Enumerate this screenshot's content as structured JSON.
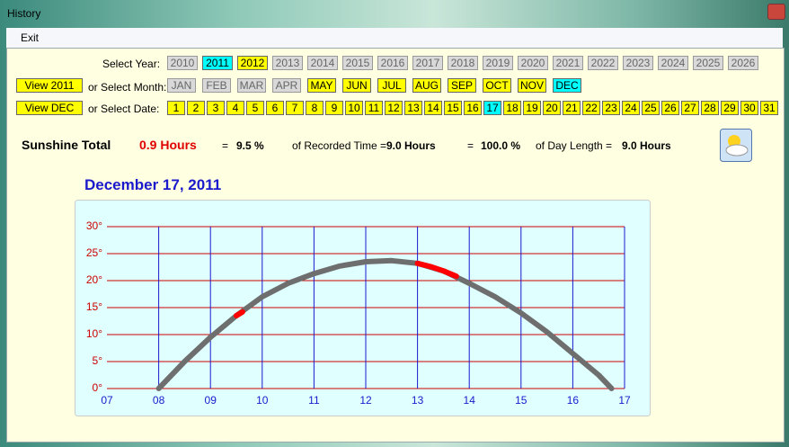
{
  "window": {
    "title": "History",
    "menu": [
      "Exit"
    ]
  },
  "selectors": {
    "year_label": "Select Year:",
    "month_label": "or Select Month:",
    "date_label": "or Select Date:",
    "view_year_button": "View 2011",
    "view_month_button": "View DEC",
    "years": [
      "2010",
      "2011",
      "2012",
      "2013",
      "2014",
      "2015",
      "2016",
      "2017",
      "2018",
      "2019",
      "2020",
      "2021",
      "2022",
      "2023",
      "2024",
      "2025",
      "2026"
    ],
    "year_states": [
      "disabled",
      "selected",
      "active",
      "disabled",
      "disabled",
      "disabled",
      "disabled",
      "disabled",
      "disabled",
      "disabled",
      "disabled",
      "disabled",
      "disabled",
      "disabled",
      "disabled",
      "disabled",
      "disabled"
    ],
    "months": [
      "JAN",
      "FEB",
      "MAR",
      "APR",
      "MAY",
      "JUN",
      "JUL",
      "AUG",
      "SEP",
      "OCT",
      "NOV",
      "DEC"
    ],
    "month_states": [
      "disabled",
      "disabled",
      "disabled",
      "disabled",
      "active",
      "active",
      "active",
      "active",
      "active",
      "active",
      "active",
      "selected"
    ],
    "dates": [
      "1",
      "2",
      "3",
      "4",
      "5",
      "6",
      "7",
      "8",
      "9",
      "10",
      "11",
      "12",
      "13",
      "14",
      "15",
      "16",
      "17",
      "18",
      "19",
      "20",
      "21",
      "22",
      "23",
      "24",
      "25",
      "26",
      "27",
      "28",
      "29",
      "30",
      "31"
    ],
    "date_states": [
      "active",
      "active",
      "active",
      "active",
      "active",
      "active",
      "active",
      "active",
      "active",
      "active",
      "active",
      "active",
      "active",
      "active",
      "active",
      "active",
      "selected",
      "active",
      "active",
      "active",
      "active",
      "active",
      "active",
      "active",
      "active",
      "active",
      "active",
      "active",
      "active",
      "active",
      "active"
    ]
  },
  "summary": {
    "label": "Sunshine Total",
    "total": "0.9 Hours",
    "eq1": "=",
    "pct_recorded": "9.5 %",
    "recorded_label": "of Recorded Time =",
    "recorded": "9.0 Hours",
    "eq2": "=",
    "pct_day": "100.0 %",
    "day_label": "of Day Length =",
    "day_length": "9.0 Hours"
  },
  "chart_data": {
    "type": "line",
    "title": "December 17, 2011",
    "xlim": [
      7,
      17
    ],
    "xticks": [
      {
        "value": 7,
        "label": "07"
      },
      {
        "value": 8,
        "label": "08"
      },
      {
        "value": 9,
        "label": "09"
      },
      10,
      11,
      12,
      13,
      14,
      15,
      16,
      17
    ],
    "ylim": [
      0,
      30
    ],
    "yticks": [
      {
        "value": 0,
        "label": "0°"
      },
      {
        "value": 5,
        "label": "5°"
      },
      {
        "value": 10,
        "label": "10°"
      },
      {
        "value": 15,
        "label": "15°"
      },
      {
        "value": 20,
        "label": "20°"
      },
      {
        "value": 25,
        "label": "25°"
      },
      {
        "value": 30,
        "label": "30°"
      }
    ],
    "grid": true,
    "series": [
      {
        "color": "#6e6e6e",
        "x": [
          8,
          8.5,
          9,
          9.5,
          10,
          10.5,
          11,
          11.5,
          12,
          12.5,
          13,
          13.5,
          14,
          14.5,
          15,
          15.5,
          16,
          16.5,
          16.75
        ],
        "values": [
          0,
          5,
          9.5,
          13.5,
          17,
          19.5,
          21.3,
          22.7,
          23.5,
          23.7,
          23.2,
          21.8,
          19.5,
          17,
          14,
          10.5,
          6.5,
          2.5,
          0
        ]
      },
      {
        "color": "#ff0000",
        "x": [
          9.5,
          9.62,
          9.8,
          13,
          13.25,
          13.5,
          13.75
        ],
        "values": [
          13.5,
          14.2,
          null,
          23.2,
          22.6,
          21.8,
          20.8
        ]
      }
    ]
  }
}
